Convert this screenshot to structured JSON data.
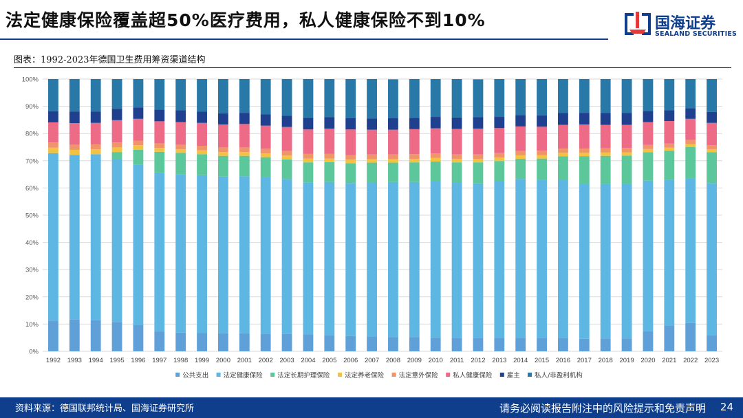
{
  "header": {
    "title": "法定健康保险覆盖超50%医疗费用，私人健康保险不到10%",
    "logo_cn": "国海证券",
    "logo_en": "SEALAND SECURITIES"
  },
  "figure_caption": "图表：1992-2023年德国卫生费用筹资渠道结构",
  "footer": {
    "source": "资料来源：德国联邦统计局、国海证券研究所",
    "disclaimer": "请务必阅读报告附注中的风险提示和免责声明",
    "page": "24"
  },
  "colors": {
    "brand": "#0f3f8c",
    "series": [
      "#5fa0d8",
      "#5eb6e2",
      "#5cc79a",
      "#f4c242",
      "#f0956a",
      "#ee6b88",
      "#1f3f8f",
      "#2878a8"
    ]
  },
  "chart_data": {
    "type": "bar",
    "stacked": true,
    "title": "1992-2023年德国卫生费用筹资渠道结构",
    "categories": [
      "1992",
      "1993",
      "1994",
      "1995",
      "1996",
      "1997",
      "1998",
      "1999",
      "2000",
      "2001",
      "2002",
      "2003",
      "2004",
      "2005",
      "2006",
      "2007",
      "2008",
      "2009",
      "2010",
      "2011",
      "2012",
      "2013",
      "2014",
      "2015",
      "2016",
      "2017",
      "2018",
      "2019",
      "2020",
      "2021",
      "2022",
      "2023"
    ],
    "ylim": [
      0,
      100
    ],
    "yticks": [
      "0%",
      "10%",
      "20%",
      "30%",
      "40%",
      "50%",
      "60%",
      "70%",
      "80%",
      "90%",
      "100%"
    ],
    "grid": true,
    "legend_position": "bottom",
    "series": [
      {
        "name": "公共支出",
        "values": [
          11.3,
          11.7,
          11.4,
          10.8,
          9.6,
          7.3,
          6.9,
          6.7,
          6.6,
          6.6,
          6.5,
          6.4,
          6.2,
          5.9,
          5.6,
          5.3,
          5.2,
          5.2,
          5.1,
          4.9,
          5.0,
          4.8,
          4.8,
          4.9,
          5.0,
          4.6,
          4.7,
          4.7,
          7.4,
          9.5,
          10.4,
          6.0
        ]
      },
      {
        "name": "法定健康保险",
        "values": [
          61.5,
          60.4,
          61.0,
          59.9,
          59.0,
          58.3,
          58.2,
          58.0,
          57.6,
          57.7,
          57.4,
          56.9,
          55.7,
          56.3,
          56.2,
          56.7,
          57.0,
          57.0,
          57.4,
          57.1,
          56.7,
          57.7,
          58.5,
          58.0,
          58.0,
          56.9,
          56.9,
          56.9,
          55.3,
          53.6,
          53.0,
          55.8
        ]
      },
      {
        "name": "法定长期护理保险",
        "values": [
          0.0,
          0.0,
          0.0,
          2.5,
          5.4,
          7.7,
          7.8,
          7.7,
          7.6,
          7.5,
          7.4,
          7.2,
          7.5,
          7.3,
          7.3,
          7.3,
          7.1,
          7.2,
          7.2,
          7.4,
          7.7,
          7.4,
          7.4,
          7.9,
          8.6,
          10.2,
          10.2,
          10.3,
          10.4,
          10.6,
          11.6,
          11.3
        ]
      },
      {
        "name": "法定养老保险",
        "values": [
          2.0,
          1.9,
          1.8,
          1.7,
          1.7,
          1.4,
          1.3,
          1.4,
          1.4,
          1.4,
          1.4,
          1.4,
          1.4,
          1.3,
          1.3,
          1.3,
          1.3,
          1.3,
          1.3,
          1.3,
          1.3,
          1.3,
          1.3,
          1.3,
          1.3,
          1.2,
          1.2,
          1.2,
          1.2,
          1.1,
          1.1,
          1.1
        ]
      },
      {
        "name": "法定意外保险",
        "values": [
          1.9,
          1.9,
          1.8,
          1.8,
          1.7,
          1.7,
          1.7,
          1.7,
          1.7,
          1.7,
          1.7,
          1.7,
          1.7,
          1.7,
          1.7,
          1.7,
          1.7,
          1.7,
          1.7,
          1.6,
          1.6,
          1.6,
          1.6,
          1.6,
          1.6,
          1.6,
          1.6,
          1.6,
          1.5,
          1.5,
          1.5,
          1.5
        ]
      },
      {
        "name": "私人健康保险",
        "values": [
          7.4,
          7.9,
          7.9,
          8.2,
          8.0,
          8.1,
          8.3,
          8.4,
          8.4,
          8.6,
          8.5,
          8.8,
          9.0,
          9.3,
          9.4,
          9.1,
          9.1,
          9.2,
          9.2,
          9.4,
          9.5,
          9.2,
          9.0,
          8.8,
          8.7,
          8.8,
          8.6,
          8.5,
          8.4,
          8.3,
          7.8,
          8.2
        ]
      },
      {
        "name": "雇主",
        "values": [
          4.1,
          4.3,
          4.2,
          4.2,
          4.2,
          4.3,
          4.3,
          4.1,
          4.1,
          4.1,
          4.1,
          4.1,
          4.3,
          4.2,
          4.2,
          4.1,
          4.2,
          4.2,
          4.2,
          4.2,
          4.2,
          4.1,
          4.2,
          4.2,
          4.3,
          4.3,
          4.3,
          4.3,
          4.1,
          3.9,
          3.9,
          4.0
        ]
      },
      {
        "name": "私人/非盈利机构",
        "values": [
          11.8,
          11.9,
          11.9,
          10.9,
          10.4,
          11.2,
          11.5,
          12.0,
          12.6,
          12.4,
          13.0,
          13.5,
          14.2,
          14.0,
          14.3,
          14.5,
          14.3,
          14.2,
          13.9,
          14.1,
          13.9,
          13.9,
          13.2,
          13.3,
          12.5,
          12.4,
          12.5,
          12.5,
          11.7,
          11.5,
          10.7,
          12.1
        ]
      }
    ]
  }
}
